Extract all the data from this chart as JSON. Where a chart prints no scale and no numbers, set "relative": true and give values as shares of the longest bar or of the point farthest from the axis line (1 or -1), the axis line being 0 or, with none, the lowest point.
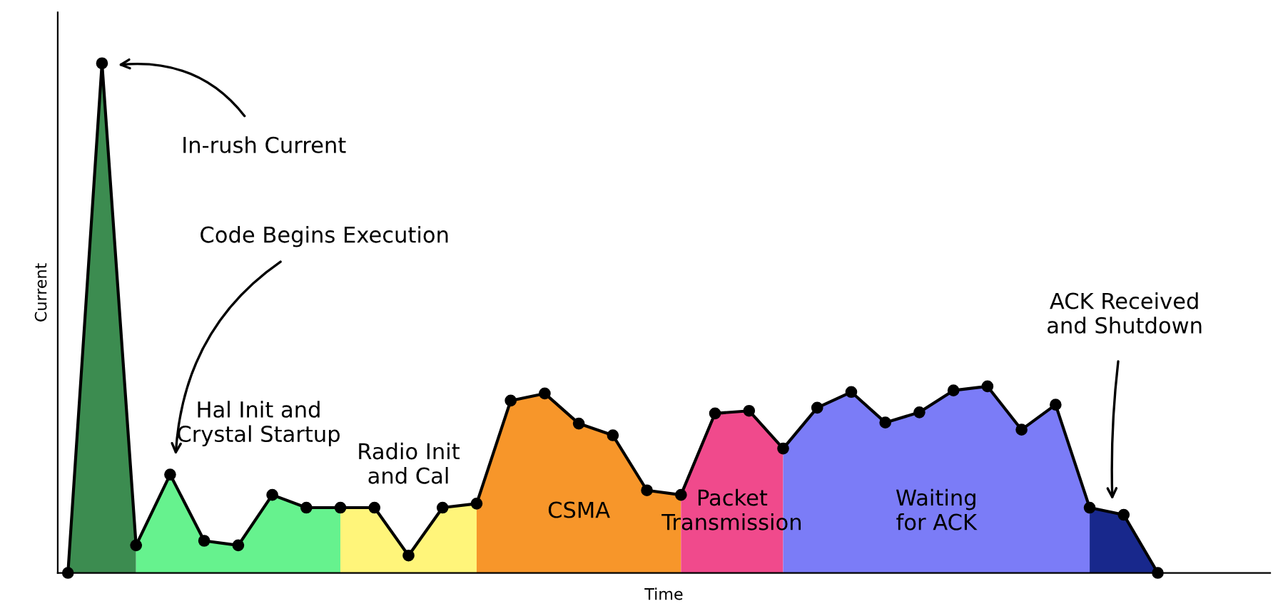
{
  "chart_data": {
    "type": "area",
    "relative": true,
    "xlabel": "Time",
    "ylabel": "Current",
    "categories": [
      null,
      null,
      null,
      null,
      null,
      null,
      null,
      null,
      null,
      null,
      null,
      null,
      null,
      null,
      null,
      null,
      null,
      null,
      null,
      null,
      null,
      null,
      null,
      null,
      null,
      null,
      null,
      null,
      null,
      null,
      null,
      null,
      null
    ],
    "grid": false,
    "legend": false,
    "series": [
      {
        "color": "#3c8c50",
        "values": [
          0,
          1,
          0.054,
          null,
          null,
          null,
          null,
          null,
          null,
          null,
          null,
          null,
          null,
          null,
          null,
          null,
          null,
          null,
          null,
          null,
          null,
          null,
          null,
          null,
          null,
          null,
          null,
          null,
          null,
          null,
          null,
          null,
          null
        ]
      },
      {
        "name": "Hal Init and\nCrystal Startup",
        "color": "#66f28e",
        "values": [
          null,
          null,
          0.054,
          0.193,
          0.063,
          0.054,
          0.153,
          0.128,
          0.128,
          null,
          null,
          null,
          null,
          null,
          null,
          null,
          null,
          null,
          null,
          null,
          null,
          null,
          null,
          null,
          null,
          null,
          null,
          null,
          null,
          null,
          null,
          null,
          null
        ]
      },
      {
        "name": "Radio Init\nand Cal",
        "color": "#fff57a",
        "values": [
          null,
          null,
          null,
          null,
          null,
          null,
          null,
          null,
          0.128,
          0.128,
          0.034,
          0.128,
          0.136,
          null,
          null,
          null,
          null,
          null,
          null,
          null,
          null,
          null,
          null,
          null,
          null,
          null,
          null,
          null,
          null,
          null,
          null,
          null,
          null
        ]
      },
      {
        "name": "CSMA",
        "color": "#f7962a",
        "values": [
          null,
          null,
          null,
          null,
          null,
          null,
          null,
          null,
          null,
          null,
          null,
          null,
          0.136,
          0.338,
          0.352,
          0.293,
          0.27,
          0.162,
          0.153,
          null,
          null,
          null,
          null,
          null,
          null,
          null,
          null,
          null,
          null,
          null,
          null,
          null,
          null
        ]
      },
      {
        "name": "Packet\nTransmission",
        "color": "#f04a8c",
        "values": [
          null,
          null,
          null,
          null,
          null,
          null,
          null,
          null,
          null,
          null,
          null,
          null,
          null,
          null,
          null,
          null,
          null,
          null,
          0.153,
          0.313,
          0.318,
          0.244,
          null,
          null,
          null,
          null,
          null,
          null,
          null,
          null,
          null,
          null,
          null
        ]
      },
      {
        "name": "Waiting\nfor ACK",
        "color": "#7b7cf7",
        "values": [
          null,
          null,
          null,
          null,
          null,
          null,
          null,
          null,
          null,
          null,
          null,
          null,
          null,
          null,
          null,
          null,
          null,
          null,
          null,
          null,
          null,
          0.244,
          0.324,
          0.355,
          0.295,
          0.315,
          0.358,
          0.366,
          0.281,
          0.33,
          0.128,
          null,
          null
        ]
      },
      {
        "color": "#18288c",
        "values": [
          null,
          null,
          null,
          null,
          null,
          null,
          null,
          null,
          null,
          null,
          null,
          null,
          null,
          null,
          null,
          null,
          null,
          null,
          null,
          null,
          null,
          null,
          null,
          null,
          null,
          null,
          null,
          null,
          null,
          null,
          0.128,
          0.114,
          0
        ]
      },
      {
        "type": "line",
        "color": "#000000",
        "marker": "circle",
        "values": [
          0,
          1,
          0.054,
          0.193,
          0.063,
          0.054,
          0.153,
          0.128,
          0.128,
          0.128,
          0.034,
          0.128,
          0.136,
          0.338,
          0.352,
          0.293,
          0.27,
          0.162,
          0.153,
          0.313,
          0.318,
          0.244,
          0.324,
          0.355,
          0.295,
          0.315,
          0.358,
          0.366,
          0.281,
          0.33,
          0.128,
          0.114,
          0
        ]
      }
    ],
    "annotations": [
      "In-rush Current",
      "Code Begins Execution",
      "ACK Received\nand Shutdown"
    ]
  }
}
